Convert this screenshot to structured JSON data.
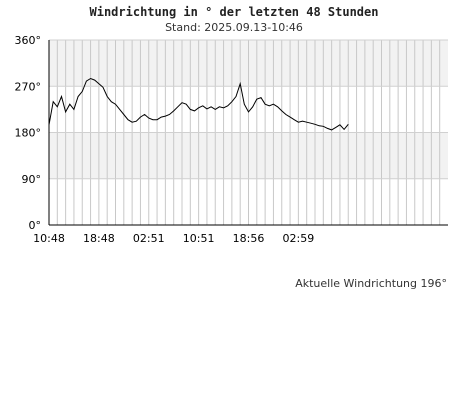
{
  "title": "Windrichtung in ° der letzten 48 Stunden",
  "subtitle": "Stand: 2025.09.13-10:46",
  "current_label": "Aktuelle Windrichtung 196°",
  "chart_data": {
    "type": "line",
    "title": "Windrichtung in ° der letzten 48 Stunden",
    "subtitle": "Stand: 2025.09.13-10:46",
    "xlabel": "",
    "ylabel": "",
    "ylim": [
      0,
      360
    ],
    "yticks": [
      0,
      90,
      180,
      270,
      360
    ],
    "ytick_labels": [
      "0°",
      "90°",
      "180°",
      "270°",
      "360°"
    ],
    "xlim": [
      0,
      48
    ],
    "xticks": [
      0,
      6,
      12,
      18,
      24,
      30
    ],
    "xtick_labels": [
      "10:48",
      "18:48",
      "02:51",
      "10:51",
      "18:56",
      "02:59"
    ],
    "grid": true,
    "legend": "none",
    "series": [
      {
        "color": "#000000",
        "x": [
          0,
          0.5,
          1,
          1.5,
          2,
          2.5,
          3,
          3.5,
          4,
          4.5,
          5,
          5.5,
          6,
          6.5,
          7,
          7.5,
          8,
          8.5,
          9,
          9.5,
          10,
          10.5,
          11,
          11.5,
          12,
          12.5,
          13,
          13.5,
          14,
          14.5,
          15,
          15.5,
          16,
          16.5,
          17,
          17.5,
          18,
          18.5,
          19,
          19.5,
          20,
          20.5,
          21,
          21.5,
          22,
          22.5,
          23,
          23.5,
          24,
          24.5,
          25,
          25.5,
          26,
          26.5,
          27,
          27.5,
          28,
          28.5,
          29,
          29.5,
          30,
          30.5,
          31,
          31.5,
          32,
          32.5,
          33,
          33.5,
          34,
          34.5,
          35,
          35.5,
          36
        ],
        "values": [
          195,
          240,
          230,
          250,
          220,
          235,
          225,
          250,
          260,
          280,
          285,
          282,
          275,
          268,
          250,
          240,
          235,
          225,
          215,
          205,
          200,
          202,
          210,
          215,
          208,
          205,
          205,
          210,
          212,
          215,
          222,
          230,
          238,
          235,
          225,
          222,
          228,
          232,
          226,
          230,
          225,
          230,
          228,
          232,
          240,
          250,
          275,
          235,
          220,
          230,
          245,
          248,
          235,
          232,
          235,
          230,
          222,
          215,
          210,
          205,
          200,
          202,
          200,
          198,
          196,
          193,
          192,
          188,
          185,
          190,
          195,
          186,
          196
        ]
      }
    ]
  }
}
